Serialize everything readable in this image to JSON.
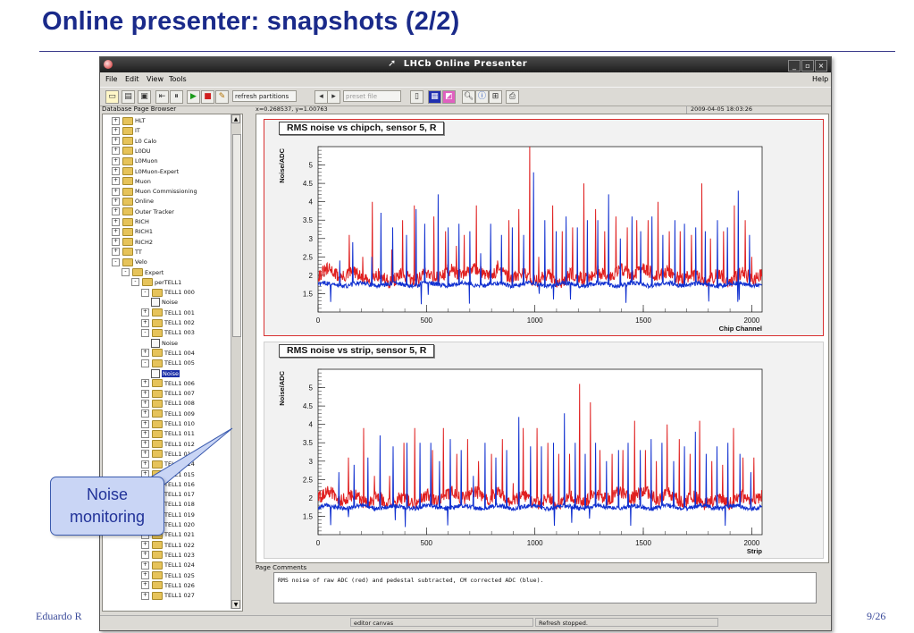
{
  "slide": {
    "title": "Online presenter: snapshots (2/2)",
    "footer_author": "Eduardo R",
    "footer_page": "9/26",
    "callout": {
      "line1": "Noise",
      "line2": "monitoring"
    }
  },
  "window": {
    "title": "LHCb Online Presenter",
    "controls": [
      "_",
      "▫",
      "×"
    ]
  },
  "menubar": {
    "items": [
      "File",
      "Edit",
      "View",
      "Tools"
    ],
    "help": "Help"
  },
  "toolbar": {
    "refresh_partitions": "refresh partitions",
    "preset_file": "preset file",
    "icons": [
      "new-page-icon",
      "open-icon",
      "save-icon",
      "pause-icon",
      "play-icon",
      "stop-icon",
      "edit-icon",
      "zoom-icon",
      "info-icon",
      "print-icon"
    ]
  },
  "browser": {
    "header": "Database Page Browser",
    "items": [
      {
        "label": "HLT",
        "level": 0,
        "type": "folder",
        "exp": "+"
      },
      {
        "label": "IT",
        "level": 0,
        "type": "folder",
        "exp": "+"
      },
      {
        "label": "L0 Calo",
        "level": 0,
        "type": "folder",
        "exp": "+"
      },
      {
        "label": "L0DU",
        "level": 0,
        "type": "folder",
        "exp": "+"
      },
      {
        "label": "L0Muon",
        "level": 0,
        "type": "folder",
        "exp": "+"
      },
      {
        "label": "L0Muon-Expert",
        "level": 0,
        "type": "folder",
        "exp": "+"
      },
      {
        "label": "Muon",
        "level": 0,
        "type": "folder",
        "exp": "+"
      },
      {
        "label": "Muon Commissioning",
        "level": 0,
        "type": "folder",
        "exp": "+"
      },
      {
        "label": "Online",
        "level": 0,
        "type": "folder",
        "exp": "+"
      },
      {
        "label": "Outer Tracker",
        "level": 0,
        "type": "folder",
        "exp": "+"
      },
      {
        "label": "RICH",
        "level": 0,
        "type": "folder",
        "exp": "+"
      },
      {
        "label": "RICH1",
        "level": 0,
        "type": "folder",
        "exp": "+"
      },
      {
        "label": "RICH2",
        "level": 0,
        "type": "folder",
        "exp": "+"
      },
      {
        "label": "TT",
        "level": 0,
        "type": "folder",
        "exp": "+"
      },
      {
        "label": "Velo",
        "level": 0,
        "type": "folder",
        "exp": "-"
      },
      {
        "label": "Expert",
        "level": 1,
        "type": "folder",
        "exp": "-"
      },
      {
        "label": "perTELL1",
        "level": 2,
        "type": "folder",
        "exp": "-"
      },
      {
        "label": "TELL1 000",
        "level": 3,
        "type": "folder",
        "exp": "-"
      },
      {
        "label": "Noise",
        "level": 4,
        "type": "page",
        "exp": ""
      },
      {
        "label": "TELL1 001",
        "level": 3,
        "type": "folder",
        "exp": "+"
      },
      {
        "label": "TELL1 002",
        "level": 3,
        "type": "folder",
        "exp": "+"
      },
      {
        "label": "TELL1 003",
        "level": 3,
        "type": "folder",
        "exp": "-"
      },
      {
        "label": "Noise",
        "level": 4,
        "type": "page",
        "exp": ""
      },
      {
        "label": "TELL1 004",
        "level": 3,
        "type": "folder",
        "exp": "+"
      },
      {
        "label": "TELL1 005",
        "level": 3,
        "type": "folder",
        "exp": "-"
      },
      {
        "label": "Noise",
        "level": 4,
        "type": "page",
        "exp": "",
        "selected": true
      },
      {
        "label": "TELL1 006",
        "level": 3,
        "type": "folder",
        "exp": "+"
      },
      {
        "label": "TELL1 007",
        "level": 3,
        "type": "folder",
        "exp": "+"
      },
      {
        "label": "TELL1 008",
        "level": 3,
        "type": "folder",
        "exp": "+"
      },
      {
        "label": "TELL1 009",
        "level": 3,
        "type": "folder",
        "exp": "+"
      },
      {
        "label": "TELL1 010",
        "level": 3,
        "type": "folder",
        "exp": "+"
      },
      {
        "label": "TELL1 011",
        "level": 3,
        "type": "folder",
        "exp": "+"
      },
      {
        "label": "TELL1 012",
        "level": 3,
        "type": "folder",
        "exp": "+"
      },
      {
        "label": "TELL1 013",
        "level": 3,
        "type": "folder",
        "exp": "+"
      },
      {
        "label": "TELL1 014",
        "level": 3,
        "type": "folder",
        "exp": "+"
      },
      {
        "label": "TELL1 015",
        "level": 3,
        "type": "folder",
        "exp": "+"
      },
      {
        "label": "TELL1 016",
        "level": 3,
        "type": "folder",
        "exp": "+"
      },
      {
        "label": "TELL1 017",
        "level": 3,
        "type": "folder",
        "exp": "+"
      },
      {
        "label": "TELL1 018",
        "level": 3,
        "type": "folder",
        "exp": "+"
      },
      {
        "label": "TELL1 019",
        "level": 3,
        "type": "folder",
        "exp": "+"
      },
      {
        "label": "TELL1 020",
        "level": 3,
        "type": "folder",
        "exp": "+"
      },
      {
        "label": "TELL1 021",
        "level": 3,
        "type": "folder",
        "exp": "+"
      },
      {
        "label": "TELL1 022",
        "level": 3,
        "type": "folder",
        "exp": "+"
      },
      {
        "label": "TELL1 023",
        "level": 3,
        "type": "folder",
        "exp": "+"
      },
      {
        "label": "TELL1 024",
        "level": 3,
        "type": "folder",
        "exp": "+"
      },
      {
        "label": "TELL1 025",
        "level": 3,
        "type": "folder",
        "exp": "+"
      },
      {
        "label": "TELL1 026",
        "level": 3,
        "type": "folder",
        "exp": "+"
      },
      {
        "label": "TELL1 027",
        "level": 3,
        "type": "folder",
        "exp": "+"
      }
    ]
  },
  "canvas": {
    "coord_readout": "x=0.268537, y=1.00763",
    "timestamp": "2009-04-05 18:03:26"
  },
  "comments": {
    "label": "Page Comments",
    "text": "RMS noise of raw ADC (red) and pedestal subtracted, CM corrected ADC (blue)."
  },
  "statusbar": {
    "left": "editor canvas",
    "right": "Refresh stopped."
  },
  "colors": {
    "raw": "#e02020",
    "corrected": "#1030d0",
    "title": "#1a2a8a"
  },
  "chart_data": [
    {
      "type": "line",
      "title": "RMS noise vs chipch, sensor 5, R",
      "xlabel": "Chip Channel",
      "ylabel": "Noise/ADC",
      "xlim": [
        0,
        2048
      ],
      "ylim": [
        1,
        5.5
      ],
      "xticks": [
        0,
        500,
        1000,
        1500,
        2000
      ],
      "yticks": [
        1.5,
        2,
        2.5,
        3,
        3.5,
        4,
        4.5,
        5
      ],
      "baseline": {
        "raw": 2.0,
        "corrected": 1.75
      },
      "series": [
        {
          "color": "#e02020",
          "description_hint": "raw",
          "spikes": [
            [
              48,
              2.1
            ],
            [
              143,
              3.1
            ],
            [
              205,
              2.5
            ],
            [
              249,
              4.0
            ],
            [
              339,
              2.7
            ],
            [
              390,
              3.5
            ],
            [
              443,
              3.9
            ],
            [
              534,
              3.6
            ],
            [
              587,
              3.2
            ],
            [
              638,
              2.8
            ],
            [
              674,
              3.1
            ],
            [
              730,
              3.9
            ],
            [
              827,
              2.4
            ],
            [
              880,
              3.5
            ],
            [
              925,
              3.8
            ],
            [
              975,
              5.6
            ],
            [
              1018,
              2.5
            ],
            [
              1081,
              3.9
            ],
            [
              1125,
              3.2
            ],
            [
              1174,
              3.3
            ],
            [
              1226,
              4.5
            ],
            [
              1280,
              3.8
            ],
            [
              1321,
              3.2
            ],
            [
              1374,
              3.6
            ],
            [
              1425,
              3.3
            ],
            [
              1470,
              3.5
            ],
            [
              1522,
              3.5
            ],
            [
              1568,
              4.0
            ],
            [
              1620,
              3.2
            ],
            [
              1670,
              3.2
            ],
            [
              1721,
              3.1
            ],
            [
              1770,
              4.5
            ],
            [
              1810,
              3.0
            ],
            [
              1870,
              3.2
            ],
            [
              1920,
              3.9
            ],
            [
              1970,
              3.5
            ],
            [
              2000,
              2.5
            ]
          ]
        },
        {
          "color": "#1030d0",
          "description_hint": "corrected",
          "spikes": [
            [
              100,
              2.4
            ],
            [
              160,
              2.9
            ],
            [
              248,
              2.5
            ],
            [
              290,
              3.7
            ],
            [
              343,
              3.3
            ],
            [
              408,
              3.1
            ],
            [
              451,
              3.8
            ],
            [
              491,
              3.4
            ],
            [
              553,
              4.2
            ],
            [
              600,
              3.3
            ],
            [
              650,
              3.4
            ],
            [
              700,
              3.2
            ],
            [
              750,
              2.6
            ],
            [
              795,
              3.4
            ],
            [
              846,
              3.1
            ],
            [
              895,
              3.3
            ],
            [
              947,
              3.1
            ],
            [
              993,
              4.8
            ],
            [
              1045,
              3.5
            ],
            [
              1098,
              3.2
            ],
            [
              1143,
              3.6
            ],
            [
              1196,
              3.3
            ],
            [
              1241,
              3.5
            ],
            [
              1290,
              3.5
            ],
            [
              1340,
              4.2
            ],
            [
              1393,
              3.0
            ],
            [
              1447,
              3.6
            ],
            [
              1488,
              3.2
            ],
            [
              1540,
              3.6
            ],
            [
              1590,
              3.1
            ],
            [
              1645,
              3.5
            ],
            [
              1690,
              3.4
            ],
            [
              1741,
              3.3
            ],
            [
              1785,
              3.2
            ],
            [
              1842,
              3.5
            ],
            [
              1887,
              3.3
            ],
            [
              1937,
              4.3
            ],
            [
              1990,
              3.1
            ]
          ]
        }
      ]
    },
    {
      "type": "line",
      "title": "RMS noise vs strip, sensor 5, R",
      "xlabel": "Strip",
      "ylabel": "Noise/ADC",
      "xlim": [
        0,
        2048
      ],
      "ylim": [
        1,
        5.5
      ],
      "xticks": [
        0,
        500,
        1000,
        1500,
        2000
      ],
      "yticks": [
        1.5,
        2,
        2.5,
        3,
        3.5,
        4,
        4.5,
        5
      ],
      "baseline": {
        "raw": 2.0,
        "corrected": 1.75
      },
      "series": [
        {
          "color": "#e02020",
          "description_hint": "raw",
          "spikes": [
            [
              60,
              2.3
            ],
            [
              140,
              3.1
            ],
            [
              210,
              3.9
            ],
            [
              260,
              2.6
            ],
            [
              330,
              2.6
            ],
            [
              395,
              3.5
            ],
            [
              445,
              3.9
            ],
            [
              528,
              3.3
            ],
            [
              578,
              3.9
            ],
            [
              640,
              3.2
            ],
            [
              690,
              3.6
            ],
            [
              740,
              3.0
            ],
            [
              800,
              3.2
            ],
            [
              850,
              3.6
            ],
            [
              900,
              2.4
            ],
            [
              945,
              3.9
            ],
            [
              1010,
              3.9
            ],
            [
              1060,
              3.5
            ],
            [
              1110,
              3.2
            ],
            [
              1160,
              3.2
            ],
            [
              1205,
              5.1
            ],
            [
              1255,
              4.6
            ],
            [
              1300,
              3.3
            ],
            [
              1355,
              3.2
            ],
            [
              1405,
              3.3
            ],
            [
              1460,
              4.1
            ],
            [
              1510,
              3.3
            ],
            [
              1560,
              3.0
            ],
            [
              1610,
              4.0
            ],
            [
              1665,
              3.6
            ],
            [
              1715,
              3.2
            ],
            [
              1760,
              4.1
            ],
            [
              1815,
              3.0
            ],
            [
              1865,
              2.9
            ],
            [
              1915,
              3.9
            ],
            [
              1960,
              3.1
            ],
            [
              2010,
              3.1
            ]
          ]
        },
        {
          "color": "#1030d0",
          "description_hint": "corrected",
          "spikes": [
            [
              95,
              2.7
            ],
            [
              165,
              2.9
            ],
            [
              230,
              3.1
            ],
            [
              285,
              3.7
            ],
            [
              345,
              3.4
            ],
            [
              410,
              3.5
            ],
            [
              470,
              3.5
            ],
            [
              520,
              3.5
            ],
            [
              560,
              3.0
            ],
            [
              610,
              3.6
            ],
            [
              660,
              3.3
            ],
            [
              715,
              2.6
            ],
            [
              770,
              3.5
            ],
            [
              820,
              3.1
            ],
            [
              870,
              3.3
            ],
            [
              925,
              4.2
            ],
            [
              980,
              3.4
            ],
            [
              1030,
              3.4
            ],
            [
              1085,
              3.5
            ],
            [
              1135,
              4.3
            ],
            [
              1185,
              3.5
            ],
            [
              1232,
              3.2
            ],
            [
              1280,
              3.5
            ],
            [
              1330,
              3.0
            ],
            [
              1385,
              3.3
            ],
            [
              1430,
              3.5
            ],
            [
              1485,
              3.3
            ],
            [
              1535,
              3.6
            ],
            [
              1585,
              3.5
            ],
            [
              1640,
              3.0
            ],
            [
              1690,
              3.4
            ],
            [
              1740,
              3.8
            ],
            [
              1790,
              3.2
            ],
            [
              1840,
              3.4
            ],
            [
              1890,
              3.5
            ],
            [
              1945,
              3.2
            ],
            [
              1995,
              2.7
            ]
          ]
        }
      ]
    }
  ]
}
